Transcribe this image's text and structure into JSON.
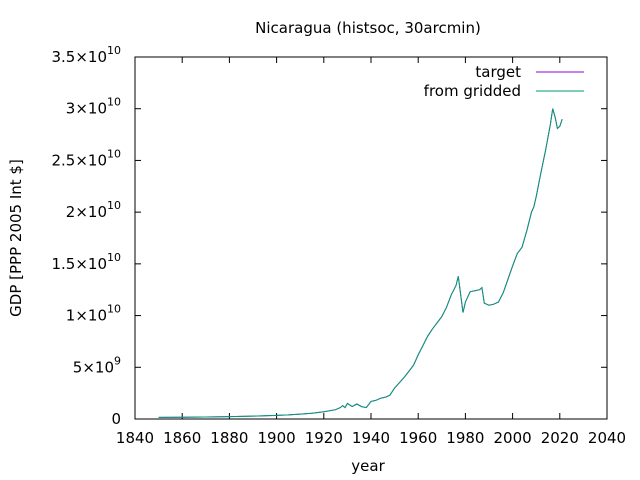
{
  "chart_data": {
    "type": "line",
    "title": "Nicaragua (histsoc, 30arcmin)",
    "xlabel": "year",
    "ylabel": "GDP [PPP 2005 Int $]",
    "xlim": [
      1840,
      2040
    ],
    "ylim": [
      0,
      35000000000
    ],
    "xticks": [
      1840,
      1860,
      1880,
      1900,
      1920,
      1940,
      1960,
      1980,
      2000,
      2020,
      2040
    ],
    "yticks": [
      {
        "value": 0,
        "mantissa": "0",
        "exp": ""
      },
      {
        "value": 5000000000,
        "mantissa": "5×10",
        "exp": "9"
      },
      {
        "value": 10000000000,
        "mantissa": "1×10",
        "exp": "10"
      },
      {
        "value": 15000000000,
        "mantissa": "1.5×10",
        "exp": "10"
      },
      {
        "value": 20000000000,
        "mantissa": "2×10",
        "exp": "10"
      },
      {
        "value": 25000000000,
        "mantissa": "2.5×10",
        "exp": "10"
      },
      {
        "value": 30000000000,
        "mantissa": "3×10",
        "exp": "10"
      },
      {
        "value": 35000000000,
        "mantissa": "3.5×10",
        "exp": "10"
      }
    ],
    "legend_position": "top-right",
    "series": [
      {
        "name": "target",
        "color": "#9400d3",
        "x": [
          1850,
          1860,
          1870,
          1880,
          1890,
          1900,
          1905,
          1910,
          1915,
          1920,
          1925,
          1927,
          1928,
          1929,
          1930,
          1932,
          1934,
          1936,
          1938,
          1940,
          1942,
          1944,
          1946,
          1948,
          1950,
          1952,
          1954,
          1956,
          1958,
          1960,
          1962,
          1964,
          1966,
          1968,
          1970,
          1972,
          1974,
          1976,
          1977,
          1978,
          1979,
          1980,
          1982,
          1984,
          1986,
          1987,
          1988,
          1990,
          1992,
          1994,
          1996,
          1998,
          2000,
          2002,
          2004,
          2006,
          2008,
          2009,
          2010,
          2012,
          2014,
          2016,
          2017,
          2018,
          2019,
          2020,
          2021
        ],
        "y": [
          150000000,
          170000000,
          190000000,
          230000000,
          280000000,
          350000000,
          400000000,
          470000000,
          550000000,
          700000000,
          900000000,
          1100000000,
          1300000000,
          1100000000,
          1500000000,
          1200000000,
          1450000000,
          1200000000,
          1100000000,
          1700000000,
          1800000000,
          2000000000,
          2100000000,
          2300000000,
          3000000000,
          3500000000,
          4000000000,
          4600000000,
          5200000000,
          6200000000,
          7100000000,
          8000000000,
          8700000000,
          9300000000,
          9900000000,
          10800000000,
          12000000000,
          12900000000,
          13800000000,
          12000000000,
          10300000000,
          11300000000,
          12300000000,
          12400000000,
          12500000000,
          12700000000,
          11200000000,
          11000000000,
          11100000000,
          11300000000,
          12200000000,
          13500000000,
          14800000000,
          16000000000,
          16600000000,
          18200000000,
          20000000000,
          20500000000,
          21500000000,
          23800000000,
          26000000000,
          28500000000,
          30000000000,
          29200000000,
          28100000000,
          28300000000,
          29000000000
        ]
      },
      {
        "name": "from gridded",
        "color": "#009e73",
        "x": [
          1850,
          1860,
          1870,
          1880,
          1890,
          1900,
          1905,
          1910,
          1915,
          1920,
          1925,
          1927,
          1928,
          1929,
          1930,
          1932,
          1934,
          1936,
          1938,
          1940,
          1942,
          1944,
          1946,
          1948,
          1950,
          1952,
          1954,
          1956,
          1958,
          1960,
          1962,
          1964,
          1966,
          1968,
          1970,
          1972,
          1974,
          1976,
          1977,
          1978,
          1979,
          1980,
          1982,
          1984,
          1986,
          1987,
          1988,
          1990,
          1992,
          1994,
          1996,
          1998,
          2000,
          2002,
          2004,
          2006,
          2008,
          2009,
          2010,
          2012,
          2014,
          2016,
          2017,
          2018,
          2019,
          2020,
          2021
        ],
        "y": [
          150000000,
          170000000,
          190000000,
          230000000,
          280000000,
          350000000,
          400000000,
          470000000,
          550000000,
          700000000,
          900000000,
          1100000000,
          1300000000,
          1100000000,
          1500000000,
          1200000000,
          1450000000,
          1200000000,
          1100000000,
          1700000000,
          1800000000,
          2000000000,
          2100000000,
          2300000000,
          3000000000,
          3500000000,
          4000000000,
          4600000000,
          5200000000,
          6200000000,
          7100000000,
          8000000000,
          8700000000,
          9300000000,
          9900000000,
          10800000000,
          12000000000,
          12900000000,
          13800000000,
          12000000000,
          10300000000,
          11300000000,
          12300000000,
          12400000000,
          12500000000,
          12700000000,
          11200000000,
          11000000000,
          11100000000,
          11300000000,
          12200000000,
          13500000000,
          14800000000,
          16000000000,
          16600000000,
          18200000000,
          20000000000,
          20500000000,
          21500000000,
          23800000000,
          26000000000,
          28500000000,
          30000000000,
          29200000000,
          28100000000,
          28300000000,
          29000000000
        ]
      }
    ]
  }
}
